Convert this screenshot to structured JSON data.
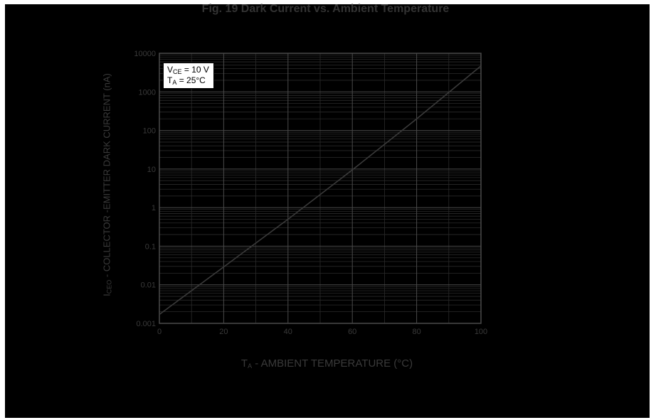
{
  "figure": {
    "title": "Fig. 19  Dark Current vs. Ambient Temperature",
    "xlabel_main": "T",
    "xlabel_sub": "A",
    "xlabel_rest": " - AMBIENT TEMPERATURE (°C)",
    "ylabel_main": "I",
    "ylabel_sub": "CEO",
    "ylabel_rest": " - COLLECTOR -EMITTER DARK CURRENT (nA)",
    "legend": {
      "line1_main": "V",
      "line1_sub": "CE",
      "line1_rest": " = 10 V",
      "line2_main": "T",
      "line2_sub": "A",
      "line2_rest": " = 25°C"
    }
  },
  "chart_data": {
    "type": "line",
    "title": "Fig. 19  Dark Current vs. Ambient Temperature",
    "xlabel": "TA - AMBIENT TEMPERATURE (°C)",
    "ylabel": "ICEO - COLLECTOR -EMITTER DARK CURRENT (nA)",
    "x_scale": "linear",
    "y_scale": "log",
    "xlim": [
      0,
      100
    ],
    "ylim": [
      0.001,
      10000
    ],
    "x_ticks": [
      0,
      20,
      40,
      60,
      80,
      100
    ],
    "x_tick_labels": [
      "0",
      "20",
      "40",
      "60",
      "80",
      "100"
    ],
    "y_ticks": [
      0.001,
      0.01,
      0.1,
      1,
      10,
      100,
      1000,
      10000
    ],
    "y_tick_labels": [
      "0.001",
      "0.01",
      "0.1",
      "1",
      "10",
      "100",
      "1000",
      "10000"
    ],
    "grid": true,
    "legend_position": "top-left",
    "series": [
      {
        "x": [
          0,
          20,
          40,
          60,
          80,
          100
        ],
        "y": [
          0.0017,
          0.029,
          0.5,
          9.5,
          200,
          4700
        ]
      }
    ],
    "colors": {
      "background": "#000000",
      "grid": "#2b2b2b",
      "axis": "#4a4a4a",
      "line": "#3a3a3a",
      "text": "#3a3a3a"
    }
  }
}
